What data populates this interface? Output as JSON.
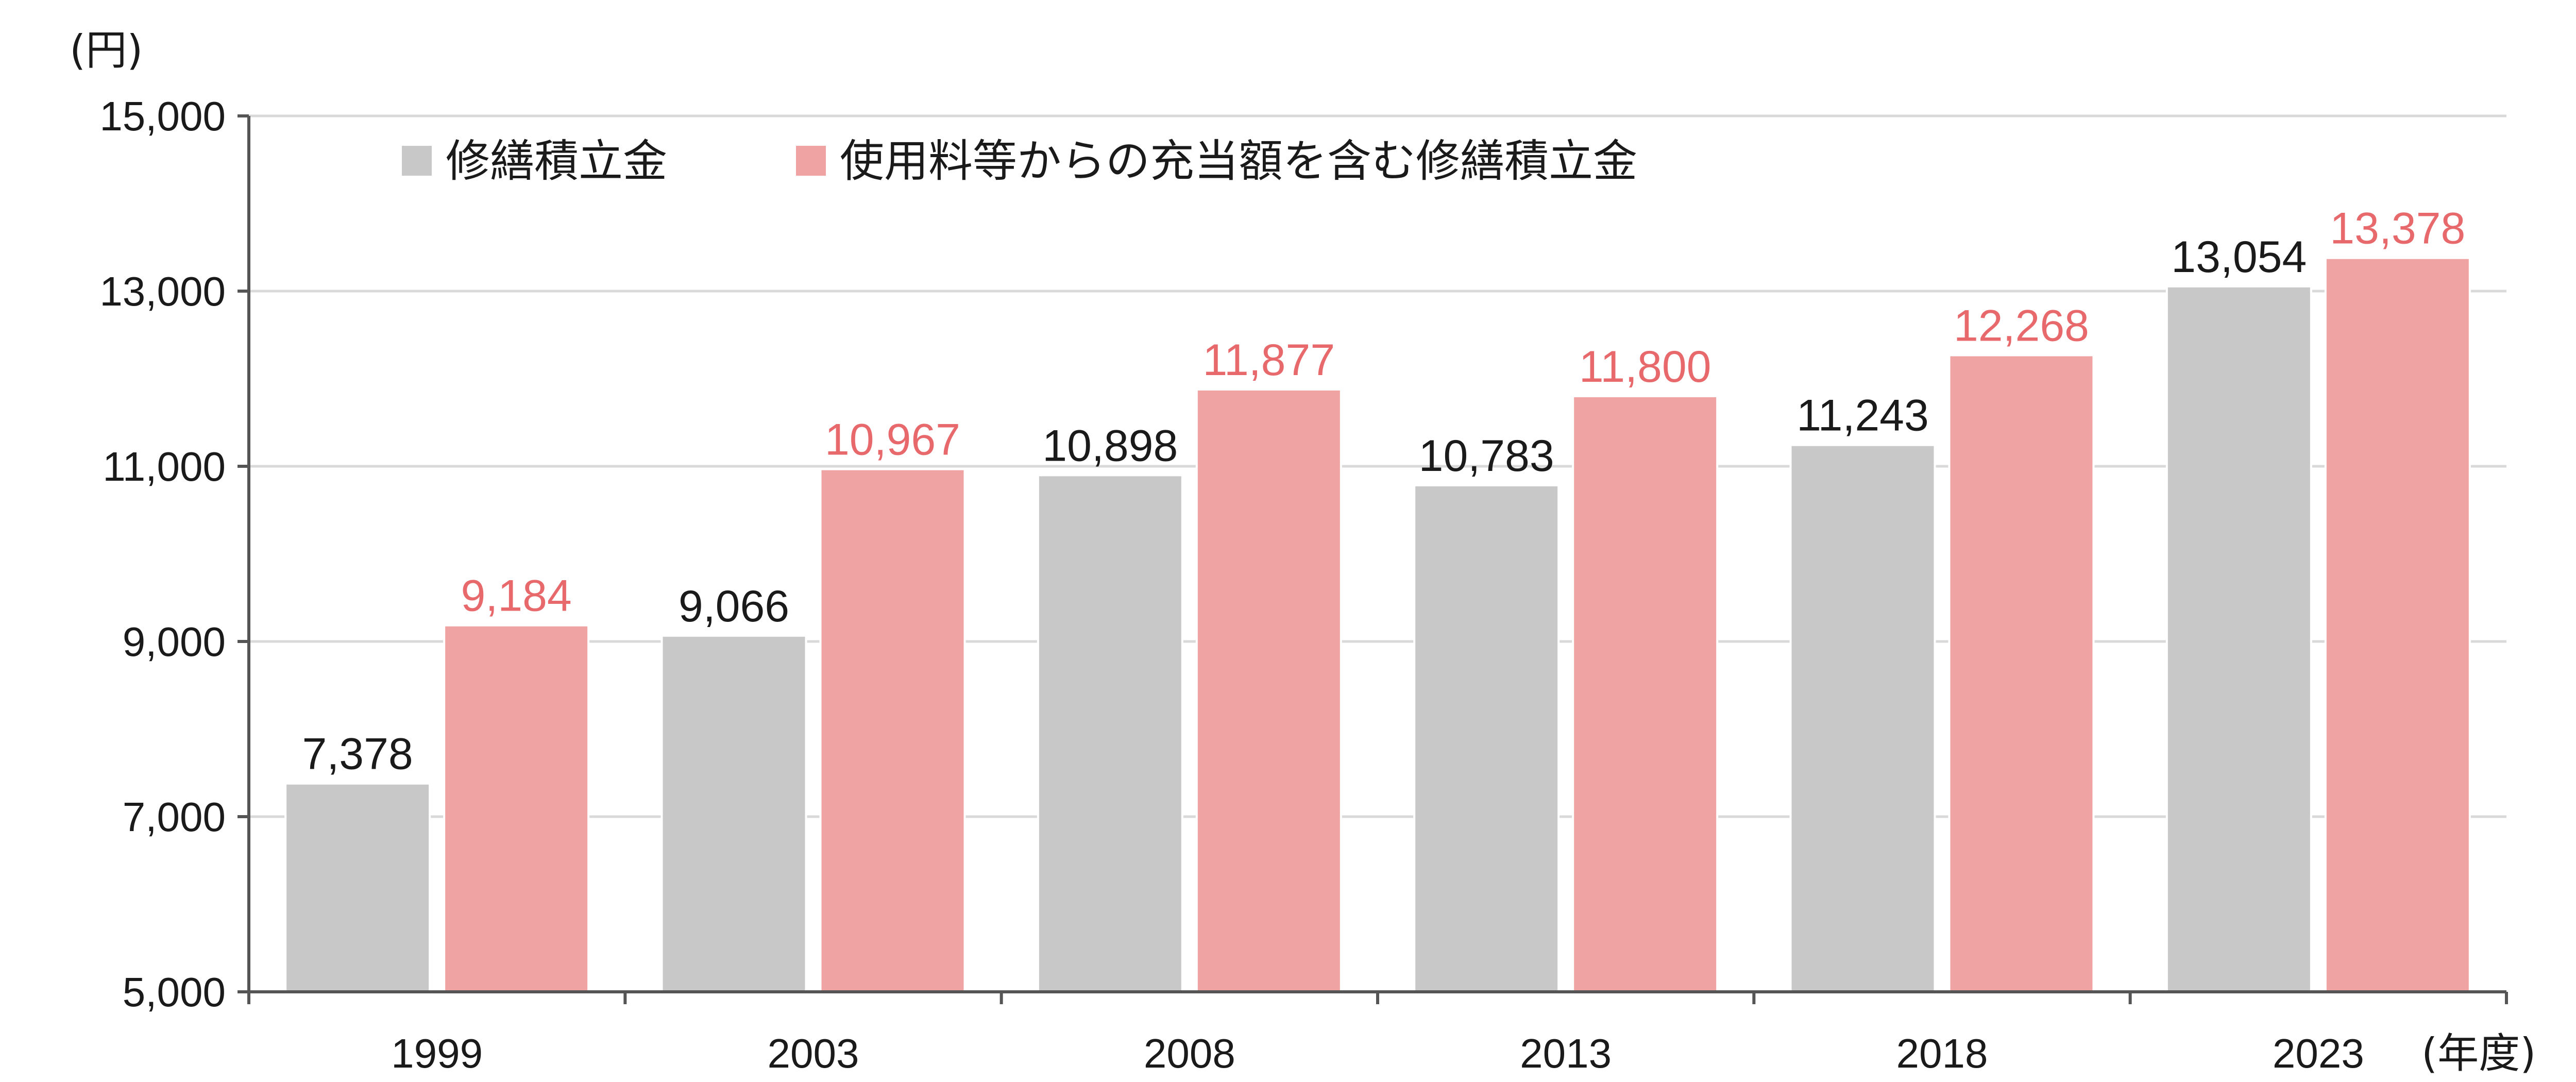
{
  "chart_data": {
    "type": "bar",
    "y_unit_label": "(円)",
    "x_unit_label": "(年度)",
    "categories": [
      "1999",
      "2003",
      "2008",
      "2013",
      "2018",
      "2023"
    ],
    "series": [
      {
        "name": "修繕積立金",
        "values": [
          7378,
          9066,
          10898,
          10783,
          11243,
          13054
        ],
        "labels": [
          "7,378",
          "9,066",
          "10,898",
          "10,783",
          "11,243",
          "13,054"
        ],
        "color": "#c8c8c8",
        "label_color": "#1a1a1a"
      },
      {
        "name": "使用料等からの充当額を含む修繕積立金",
        "values": [
          9184,
          10967,
          11877,
          11800,
          12268,
          13378
        ],
        "labels": [
          "9,184",
          "10,967",
          "11,877",
          "11,800",
          "12,268",
          "13,378"
        ],
        "color": "#f0a3a3",
        "label_color": "#e8696c"
      }
    ],
    "ylim": [
      5000,
      15000
    ],
    "yticks": [
      5000,
      7000,
      9000,
      11000,
      13000,
      15000
    ],
    "ytick_labels": [
      "5,000",
      "7,000",
      "9,000",
      "11,000",
      "13,000",
      "15,000"
    ],
    "grid": true,
    "legend_position": "top-left"
  }
}
